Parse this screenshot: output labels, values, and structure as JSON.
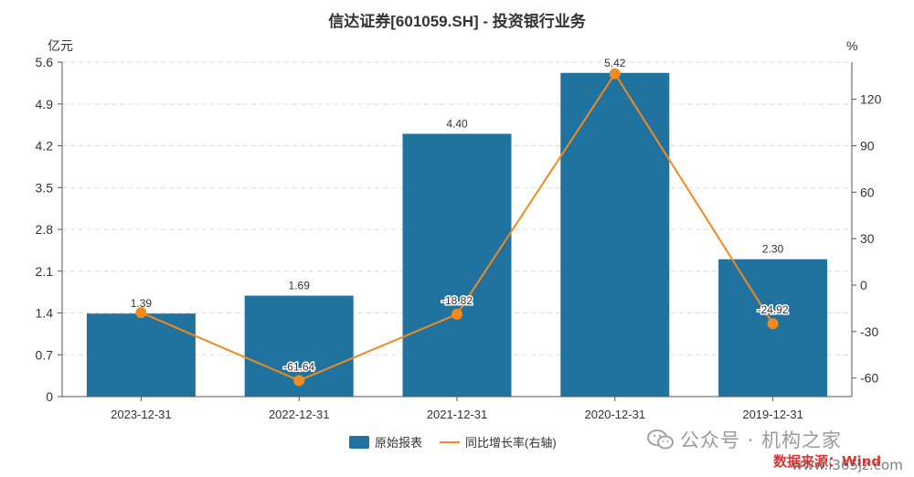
{
  "chart_data": {
    "type": "bar",
    "title": "信达证券[601059.SH] - 投资银行业务",
    "categories": [
      "2023-12-31",
      "2022-12-31",
      "2021-12-31",
      "2020-12-31",
      "2019-12-31"
    ],
    "y_left": {
      "unit": "亿元",
      "range": [
        0,
        5.6
      ],
      "ticks": [
        "0",
        "0.7",
        "1.4",
        "2.1",
        "2.8",
        "3.5",
        "4.2",
        "4.9",
        "5.6"
      ]
    },
    "y_right": {
      "unit": "%",
      "range": [
        -72,
        144
      ],
      "ticks": [
        "-60",
        "-30",
        "0",
        "30",
        "60",
        "90",
        "120"
      ]
    },
    "grid": true,
    "legend_position": "bottom-center",
    "series": [
      {
        "name": "原始报表",
        "type": "bar",
        "axis": "left",
        "color": "#21739f",
        "values": [
          1.39,
          1.69,
          4.4,
          5.42,
          2.3
        ],
        "labels": [
          "1.39",
          "1.69",
          "4.40",
          "5.42",
          "2.30"
        ]
      },
      {
        "name": "同比增长率(右轴)",
        "type": "line",
        "axis": "right",
        "color": "#f28a1e",
        "values": [
          -17.75,
          -61.64,
          -18.82,
          136.47,
          -24.92
        ],
        "labels": [
          "",
          "-61.64",
          "-18.82",
          "",
          "-24.92"
        ]
      }
    ]
  },
  "watermark": {
    "account": "公众号 · 机构之家",
    "source": "数据来源：Wind",
    "site": "www.i365jz.com"
  }
}
